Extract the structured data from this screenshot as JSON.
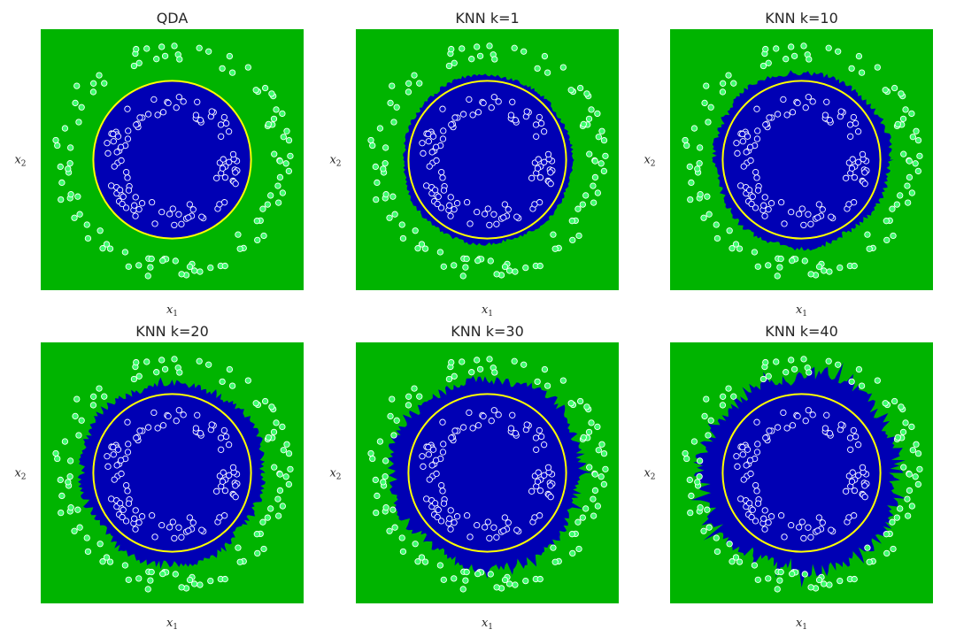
{
  "figure": {
    "xlabel_main": "x",
    "xlabel_sub": "1",
    "ylabel_main": "x",
    "ylabel_sub": "2"
  },
  "colors": {
    "outer_region": "#00b400",
    "inner_region": "#0000b4",
    "boundary": "#ffff00",
    "outer_points": "#39ff6a",
    "inner_points": "#0000c8",
    "point_edge": "#ffffff"
  },
  "chart_data": [
    {
      "type": "scatter",
      "title": "QDA",
      "method": "QDA",
      "k": null,
      "xlabel": "x1",
      "ylabel": "x2",
      "xlim": [
        -1.25,
        1.25
      ],
      "ylim": [
        -1.25,
        1.25
      ],
      "grid": false,
      "inner_radius_range": [
        0.45,
        0.65
      ],
      "outer_radius_range": [
        0.95,
        1.15
      ],
      "n_points_per_class": 100,
      "boundary_radius": 0.75
    },
    {
      "type": "scatter",
      "title": "KNN k=1",
      "method": "KNN",
      "k": 1,
      "xlabel": "x1",
      "ylabel": "x2",
      "xlim": [
        -1.25,
        1.25
      ],
      "ylim": [
        -1.25,
        1.25
      ],
      "grid": false,
      "inner_radius_range": [
        0.45,
        0.65
      ],
      "outer_radius_range": [
        0.95,
        1.15
      ],
      "n_points_per_class": 100,
      "boundary_radius": 0.75
    },
    {
      "type": "scatter",
      "title": "KNN k=10",
      "method": "KNN",
      "k": 10,
      "xlabel": "x1",
      "ylabel": "x2",
      "xlim": [
        -1.25,
        1.25
      ],
      "ylim": [
        -1.25,
        1.25
      ],
      "grid": false,
      "inner_radius_range": [
        0.45,
        0.65
      ],
      "outer_radius_range": [
        0.95,
        1.15
      ],
      "n_points_per_class": 100,
      "boundary_radius": 0.75
    },
    {
      "type": "scatter",
      "title": "KNN k=20",
      "method": "KNN",
      "k": 20,
      "xlabel": "x1",
      "ylabel": "x2",
      "xlim": [
        -1.25,
        1.25
      ],
      "ylim": [
        -1.25,
        1.25
      ],
      "grid": false,
      "inner_radius_range": [
        0.45,
        0.65
      ],
      "outer_radius_range": [
        0.95,
        1.15
      ],
      "n_points_per_class": 100,
      "boundary_radius": 0.75
    },
    {
      "type": "scatter",
      "title": "KNN k=30",
      "method": "KNN",
      "k": 30,
      "xlabel": "x1",
      "ylabel": "x2",
      "xlim": [
        -1.25,
        1.25
      ],
      "ylim": [
        -1.25,
        1.25
      ],
      "grid": false,
      "inner_radius_range": [
        0.45,
        0.65
      ],
      "outer_radius_range": [
        0.95,
        1.15
      ],
      "n_points_per_class": 100,
      "boundary_radius": 0.75
    },
    {
      "type": "scatter",
      "title": "KNN k=40",
      "method": "KNN",
      "k": 40,
      "xlabel": "x1",
      "ylabel": "x2",
      "xlim": [
        -1.25,
        1.25
      ],
      "ylim": [
        -1.25,
        1.25
      ],
      "grid": false,
      "inner_radius_range": [
        0.45,
        0.65
      ],
      "outer_radius_range": [
        0.95,
        1.15
      ],
      "n_points_per_class": 100,
      "boundary_radius": 0.75
    }
  ]
}
